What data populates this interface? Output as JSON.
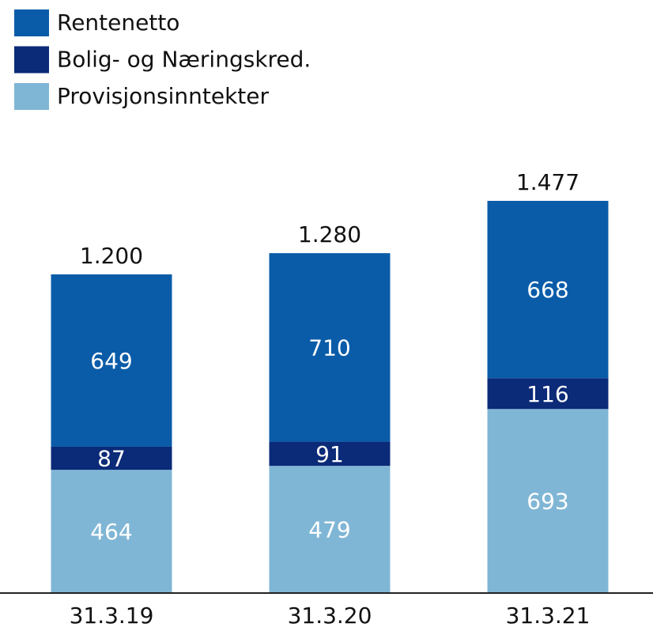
{
  "chart_data": {
    "type": "stacked_bar",
    "categories": [
      "31.3.19",
      "31.3.20",
      "31.3.21"
    ],
    "series": [
      {
        "name": "Rentenetto",
        "color": "#0a5ca8",
        "values": [
          649,
          710,
          668
        ]
      },
      {
        "name": "Bolig- og Næringskred.",
        "color": "#0b2a78",
        "values": [
          87,
          91,
          116
        ]
      },
      {
        "name": "Provisjonsinntekter",
        "color": "#80b6d5",
        "values": [
          464,
          479,
          693
        ]
      }
    ],
    "totals": {
      "values": [
        1200,
        1280,
        1477
      ],
      "value_labels": [
        "1.200",
        "1.280",
        "1.477"
      ]
    }
  }
}
